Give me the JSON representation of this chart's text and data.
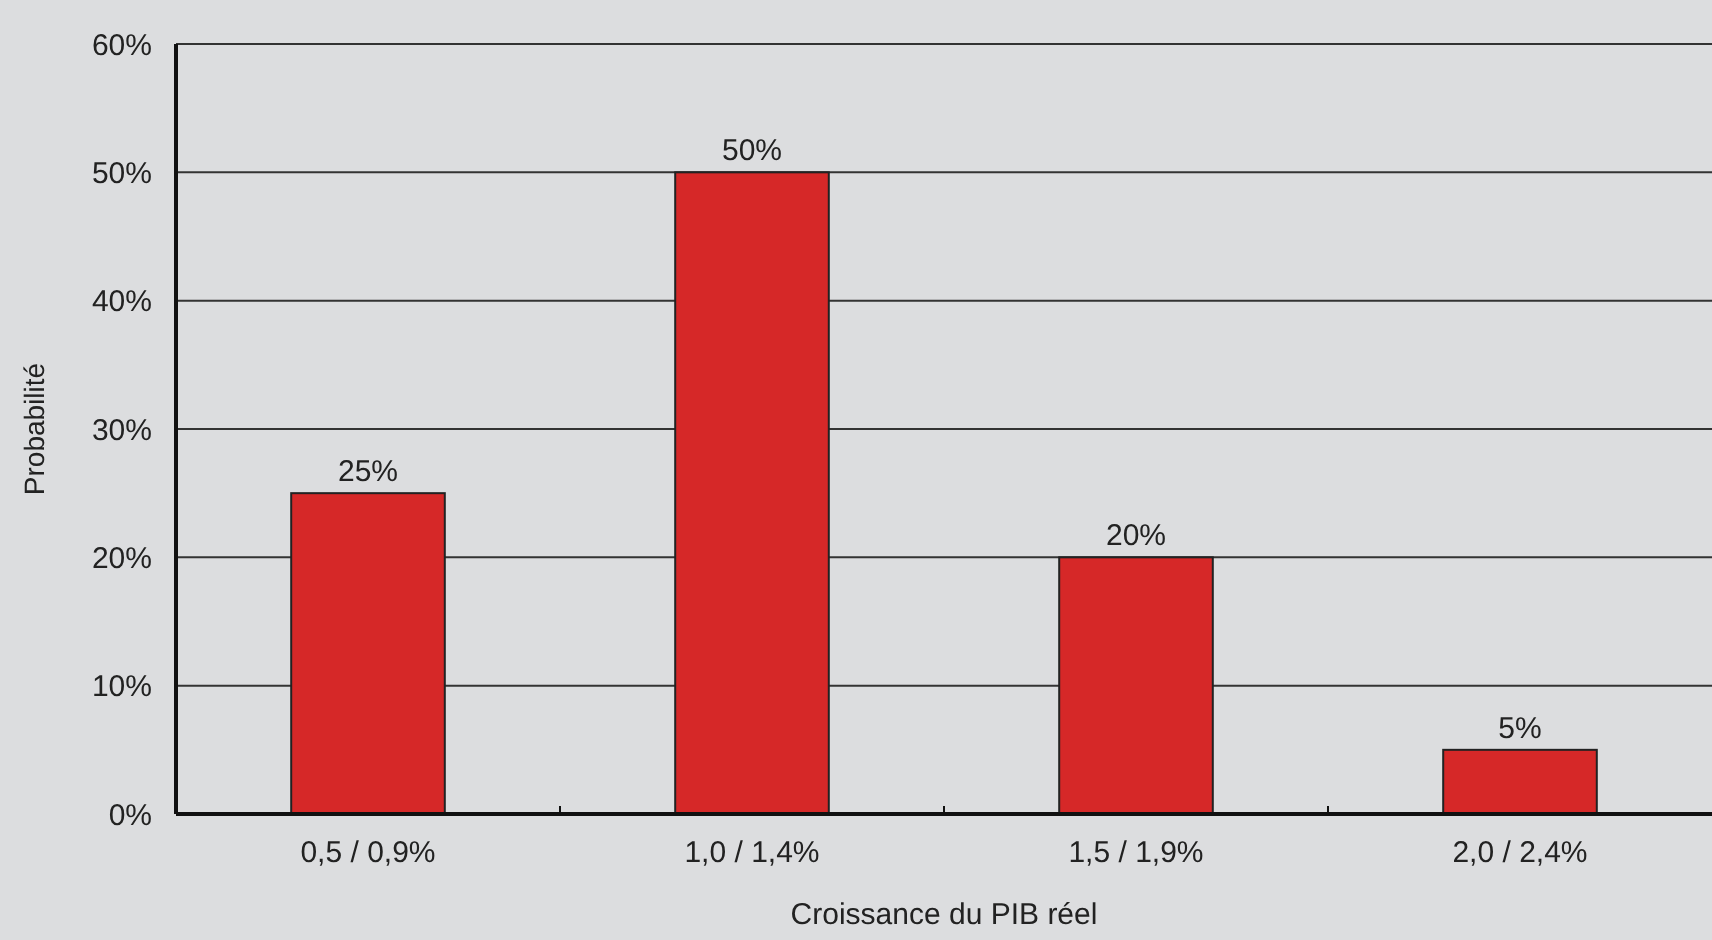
{
  "chart_data": {
    "type": "bar",
    "xlabel": "Croissance du PIB réel",
    "ylabel": "Probabilité",
    "categories": [
      "0,5 / 0,9%",
      "1,0 / 1,4%",
      "1,5 / 1,9%",
      "2,0 / 2,4%"
    ],
    "values": [
      25,
      50,
      20,
      5
    ],
    "color": "#d62828",
    "value_labels": [
      "25%",
      "50%",
      "20%",
      "5%"
    ],
    "ylim": [
      0,
      60
    ],
    "yticks": [
      {
        "value": 0,
        "label": "0%"
      },
      {
        "value": 10,
        "label": "10%"
      },
      {
        "value": 20,
        "label": "20%"
      },
      {
        "value": 30,
        "label": "30%"
      },
      {
        "value": 40,
        "label": "40%"
      },
      {
        "value": 50,
        "label": "50%"
      },
      {
        "value": 60,
        "label": "60%"
      }
    ],
    "grid": "y"
  }
}
